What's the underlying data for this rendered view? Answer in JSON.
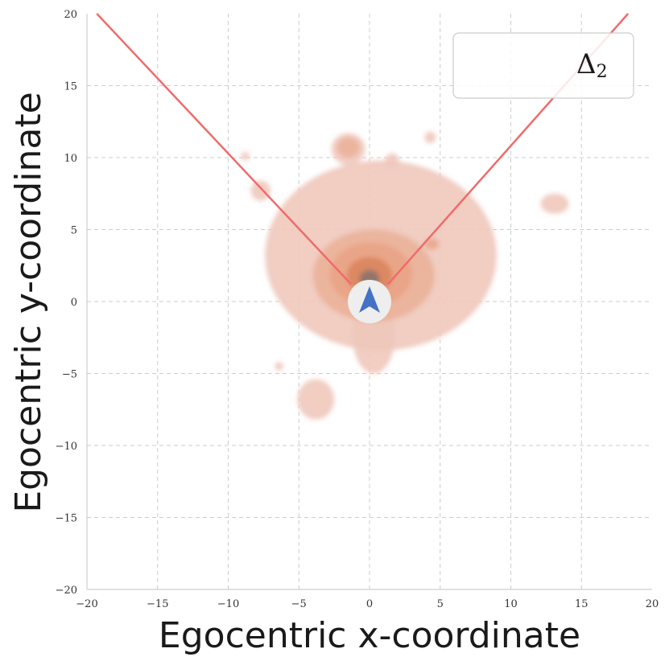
{
  "chart_data": {
    "type": "heatmap",
    "xlabel": "Egocentric x-coordinate",
    "ylabel": "Egocentric y-coordinate",
    "xlim": [
      -20,
      20
    ],
    "ylim": [
      -20,
      20
    ],
    "xticks": [
      -20,
      -15,
      -10,
      -5,
      0,
      5,
      10,
      15,
      20
    ],
    "yticks": [
      -20,
      -15,
      -10,
      -5,
      0,
      5,
      10,
      15,
      20
    ],
    "xtick_labels": [
      "−20",
      "−15",
      "−10",
      "−5",
      "0",
      "5",
      "10",
      "15",
      "20"
    ],
    "ytick_labels": [
      "−20",
      "−15",
      "−10",
      "−5",
      "0",
      "5",
      "10",
      "15",
      "20"
    ],
    "grid": true,
    "legend": {
      "label": "Δ",
      "subscript": "2",
      "placement": "top-right"
    },
    "colors": {
      "fov_lines": "#f06b6b",
      "density_low": "#f0c8bb",
      "density_mid": "#e8a07f",
      "density_high": "#d9825a",
      "density_peak": "#7a6e6e",
      "agent_marker": "#4472c4",
      "agent_circle": "#eeeeee",
      "grid": "#cccccc"
    },
    "field_of_view_lines": [
      {
        "x": [
          -1.3,
          -19.3
        ],
        "y": [
          1.2,
          20
        ]
      },
      {
        "x": [
          1.3,
          18.3
        ],
        "y": [
          1.2,
          20
        ]
      }
    ],
    "agent": {
      "x": 0,
      "y": 0,
      "icon": "arrow-up-icon"
    },
    "density_blobs": [
      {
        "level": 1,
        "cx": 0.8,
        "cy": 3.2,
        "rx": 8.2,
        "ry": 6.6
      },
      {
        "level": 1,
        "cx": 0.3,
        "cy": -2.4,
        "rx": 1.5,
        "ry": 2.6
      },
      {
        "level": 1,
        "cx": -3.8,
        "cy": -6.8,
        "rx": 1.3,
        "ry": 1.4
      },
      {
        "level": 1,
        "cx": -1.5,
        "cy": 10.6,
        "rx": 1.2,
        "ry": 1.1
      },
      {
        "level": 1,
        "cx": 13.1,
        "cy": 6.8,
        "rx": 1.0,
        "ry": 0.7
      },
      {
        "level": 1,
        "cx": -7.7,
        "cy": 7.7,
        "rx": 0.7,
        "ry": 0.7
      },
      {
        "level": 1,
        "cx": 1.6,
        "cy": 9.8,
        "rx": 0.5,
        "ry": 0.5
      },
      {
        "level": 1,
        "cx": 4.3,
        "cy": 11.4,
        "rx": 0.4,
        "ry": 0.4
      },
      {
        "level": 1,
        "cx": -8.8,
        "cy": 10.1,
        "rx": 0.3,
        "ry": 0.3
      },
      {
        "level": 1,
        "cx": -6.4,
        "cy": -4.5,
        "rx": 0.3,
        "ry": 0.3
      },
      {
        "level": 2,
        "cx": 0.3,
        "cy": 1.8,
        "rx": 4.3,
        "ry": 3.2
      },
      {
        "level": 2,
        "cx": -1.5,
        "cy": 10.7,
        "rx": 0.8,
        "ry": 0.7
      },
      {
        "level": 3,
        "cx": 0.1,
        "cy": 1.9,
        "rx": 2.9,
        "ry": 2.2
      },
      {
        "level": 3,
        "cx": 4.4,
        "cy": 4.0,
        "rx": 0.5,
        "ry": 0.4
      },
      {
        "level": 4,
        "cx": 0.0,
        "cy": 1.8,
        "rx": 1.6,
        "ry": 1.3
      },
      {
        "level": 5,
        "cx": 0.0,
        "cy": 1.6,
        "rx": 0.7,
        "ry": 0.6
      }
    ]
  }
}
